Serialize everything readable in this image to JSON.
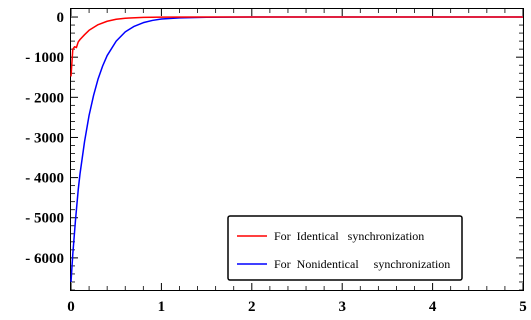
{
  "chart_data": {
    "type": "line",
    "xlim": [
      0,
      5
    ],
    "ylim": [
      -6800,
      200
    ],
    "x_ticks": [
      0,
      1,
      2,
      3,
      4,
      5
    ],
    "x_tick_labels": [
      "0",
      "1",
      "2",
      "3",
      "4",
      "5"
    ],
    "y_ticks": [
      0,
      -1000,
      -2000,
      -3000,
      -4000,
      -5000,
      -6000
    ],
    "y_tick_labels": [
      "0",
      "- 1000",
      "- 2000",
      "- 3000",
      "- 4000",
      "- 5000",
      "- 6000"
    ],
    "grid": false,
    "legend_position": "bottom-right",
    "series": [
      {
        "name": "For  Identical   synchronization",
        "color": "#ff0000",
        "x": [
          0.0,
          0.02,
          0.04,
          0.06,
          0.08,
          0.1,
          0.15,
          0.2,
          0.3,
          0.4,
          0.5,
          0.6,
          0.8,
          1.0,
          1.5,
          2.0,
          3.0,
          4.0,
          5.0
        ],
        "y": [
          -1480,
          -800,
          -740,
          -760,
          -620,
          -560,
          -440,
          -330,
          -190,
          -105,
          -55,
          -30,
          -10,
          -3,
          0,
          0,
          0,
          0,
          0
        ]
      },
      {
        "name": "For  Nonidentical     synchronization",
        "color": "#0000ff",
        "x": [
          0.0,
          0.02,
          0.05,
          0.08,
          0.1,
          0.15,
          0.2,
          0.25,
          0.3,
          0.35,
          0.4,
          0.5,
          0.6,
          0.7,
          0.8,
          0.9,
          1.0,
          1.2,
          1.5,
          2.0,
          3.0,
          4.0,
          5.0
        ],
        "y": [
          -6600,
          -5900,
          -5050,
          -4300,
          -3900,
          -3100,
          -2450,
          -1950,
          -1540,
          -1220,
          -960,
          -600,
          -370,
          -230,
          -140,
          -85,
          -50,
          -20,
          -5,
          0,
          0,
          0,
          0
        ]
      }
    ]
  }
}
